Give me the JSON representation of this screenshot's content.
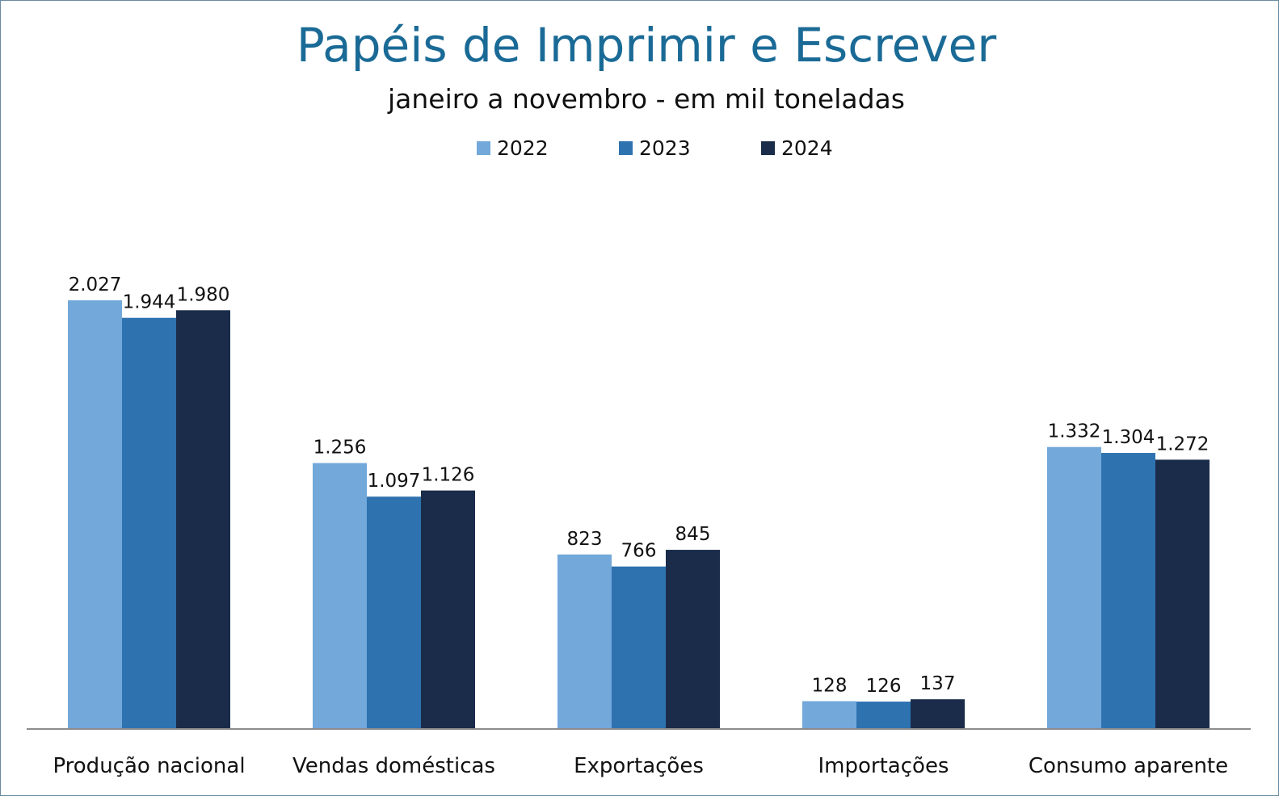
{
  "chart_data": {
    "type": "bar",
    "title": "Papéis de Imprimir e Escrever",
    "subtitle": "janeiro a novembro  -  em mil toneladas",
    "categories": [
      "Produção nacional",
      "Vendas domésticas",
      "Exportações",
      "Importações",
      "Consumo aparente"
    ],
    "series": [
      {
        "name": "2022",
        "color": "#72a8da",
        "values": [
          2027,
          1256,
          823,
          128,
          1332
        ],
        "labels": [
          "2.027",
          "1.256",
          "823",
          "128",
          "1.332"
        ]
      },
      {
        "name": "2023",
        "color": "#2e72b0",
        "values": [
          1944,
          1097,
          766,
          126,
          1304
        ],
        "labels": [
          "1.944",
          "1.097",
          "766",
          "126",
          "1.304"
        ]
      },
      {
        "name": "2024",
        "color": "#1a2c4a",
        "values": [
          1980,
          1126,
          845,
          137,
          1272
        ],
        "labels": [
          "1.980",
          "1.126",
          "845",
          "137",
          "1.272"
        ]
      }
    ],
    "ylim": [
      0,
      2027
    ],
    "legend": "top-center",
    "grid": false,
    "xlabel": "",
    "ylabel": ""
  }
}
